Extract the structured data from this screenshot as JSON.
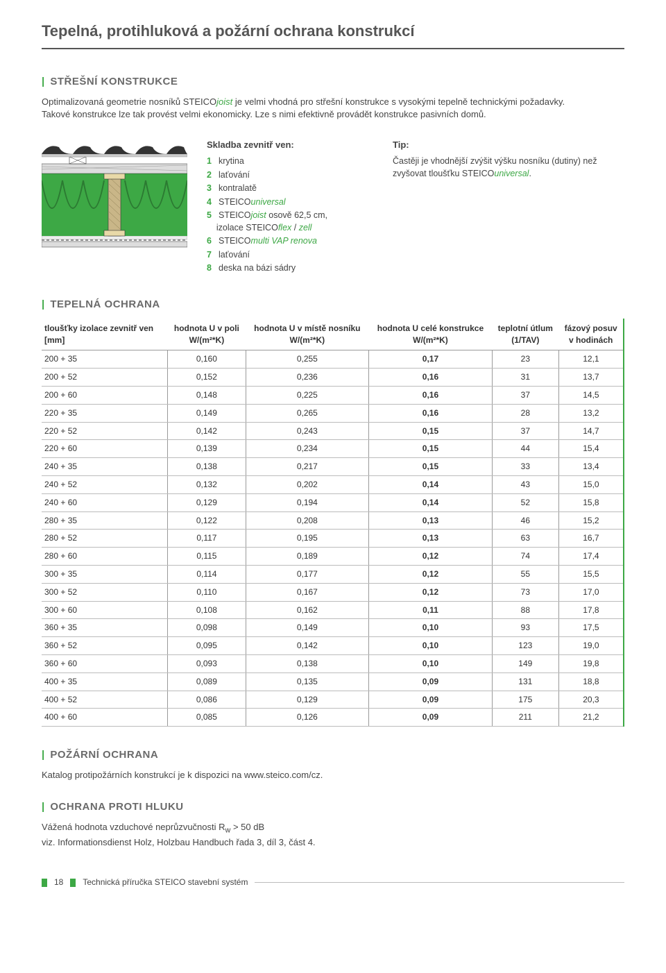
{
  "page_title": "Tepelná, protihluková a požární ochrana konstrukcí",
  "section1": {
    "heading": "STŘEŠNÍ KONSTRUKCE",
    "intro_html": "Optimalizovaná geometrie nosníků STEICO<i class='italic-brand'>joist</i> je velmi vhodná pro střešní konstrukce s vysokými tepelně technickými požadavky. Takové konstrukce lze tak provést velmi ekonomicky. Lze s nimi efektivně provádět konstrukce pasivních domů."
  },
  "diagram": {
    "colors": {
      "insulation": "#3da845",
      "joist_web": "#c9b688",
      "flange": "#e8d9a8",
      "battens": "#999999",
      "hatch": "#777777",
      "tile": "#333333",
      "gypsum": "#dddddd",
      "outline": "#333333"
    }
  },
  "layers": {
    "heading": "Skladba zevnitř ven:",
    "items": [
      {
        "n": "1",
        "html": "krytina"
      },
      {
        "n": "2",
        "html": "laťování"
      },
      {
        "n": "3",
        "html": "kontralatě"
      },
      {
        "n": "4",
        "html": "STEICO<span class='italic-brand'>universal</span>"
      },
      {
        "n": "5",
        "html": "STEICO<span class='italic-brand'>joist</span> osově 62,5 cm,<br>&nbsp;&nbsp;&nbsp;&nbsp;izolace STEICO<span class='italic-brand'>flex</span> / <span class='italic-brand'>zell</span>"
      },
      {
        "n": "6",
        "html": "STEICO<span class='italic-brand'>multi VAP renova</span>"
      },
      {
        "n": "7",
        "html": "laťování"
      },
      {
        "n": "8",
        "html": "deska na bázi sádry"
      }
    ]
  },
  "tip": {
    "heading": "Tip:",
    "text_html": "Častěji je vhodnější zvýšit výšku nosníku (dutiny) než zvyšovat tloušťku STEICO<span class='italic-brand'>universal</span>."
  },
  "table_section": {
    "heading": "TEPELNÁ OCHRANA",
    "columns": [
      "tloušťky izolace zevnitř ven [mm]",
      "hodnota U v poli W/(m²*K)",
      "hodnota U v místě nosníku W/(m²*K)",
      "hodnota U celé konstrukce W/(m²*K)",
      "teplotní útlum (1/TAV)",
      "fázový posuv v hodinách"
    ],
    "rows": [
      [
        "200 + 35",
        "0,160",
        "0,255",
        "0,17",
        "23",
        "12,1"
      ],
      [
        "200 + 52",
        "0,152",
        "0,236",
        "0,16",
        "31",
        "13,7"
      ],
      [
        "200 + 60",
        "0,148",
        "0,225",
        "0,16",
        "37",
        "14,5"
      ],
      [
        "220 + 35",
        "0,149",
        "0,265",
        "0,16",
        "28",
        "13,2"
      ],
      [
        "220 + 52",
        "0,142",
        "0,243",
        "0,15",
        "37",
        "14,7"
      ],
      [
        "220 + 60",
        "0,139",
        "0,234",
        "0,15",
        "44",
        "15,4"
      ],
      [
        "240 + 35",
        "0,138",
        "0,217",
        "0,15",
        "33",
        "13,4"
      ],
      [
        "240 + 52",
        "0,132",
        "0,202",
        "0,14",
        "43",
        "15,0"
      ],
      [
        "240 + 60",
        "0,129",
        "0,194",
        "0,14",
        "52",
        "15,8"
      ],
      [
        "280 + 35",
        "0,122",
        "0,208",
        "0,13",
        "46",
        "15,2"
      ],
      [
        "280 + 52",
        "0,117",
        "0,195",
        "0,13",
        "63",
        "16,7"
      ],
      [
        "280 + 60",
        "0,115",
        "0,189",
        "0,12",
        "74",
        "17,4"
      ],
      [
        "300 + 35",
        "0,114",
        "0,177",
        "0,12",
        "55",
        "15,5"
      ],
      [
        "300 + 52",
        "0,110",
        "0,167",
        "0,12",
        "73",
        "17,0"
      ],
      [
        "300 + 60",
        "0,108",
        "0,162",
        "0,11",
        "88",
        "17,8"
      ],
      [
        "360 + 35",
        "0,098",
        "0,149",
        "0,10",
        "93",
        "17,5"
      ],
      [
        "360 + 52",
        "0,095",
        "0,142",
        "0,10",
        "123",
        "19,0"
      ],
      [
        "360 + 60",
        "0,093",
        "0,138",
        "0,10",
        "149",
        "19,8"
      ],
      [
        "400 + 35",
        "0,089",
        "0,135",
        "0,09",
        "131",
        "18,8"
      ],
      [
        "400 + 52",
        "0,086",
        "0,129",
        "0,09",
        "175",
        "20,3"
      ],
      [
        "400 + 60",
        "0,085",
        "0,126",
        "0,09",
        "211",
        "21,2"
      ]
    ]
  },
  "fire_section": {
    "heading": "POŽÁRNÍ OCHRANA",
    "text": "Katalog protipožárních konstrukcí je k dispozici na www.steico.com/cz."
  },
  "noise_section": {
    "heading": "OCHRANA PROTI HLUKU",
    "text_html": "Vážená hodnota vzduchové neprůzvučnosti R<sub>w</sub> > 50 dB<br>viz. Informationsdienst Holz, Holzbau Handbuch řada 3, díl 3, část 4."
  },
  "footer": {
    "page": "18",
    "text": "Technická příručka STEICO stavební systém"
  }
}
